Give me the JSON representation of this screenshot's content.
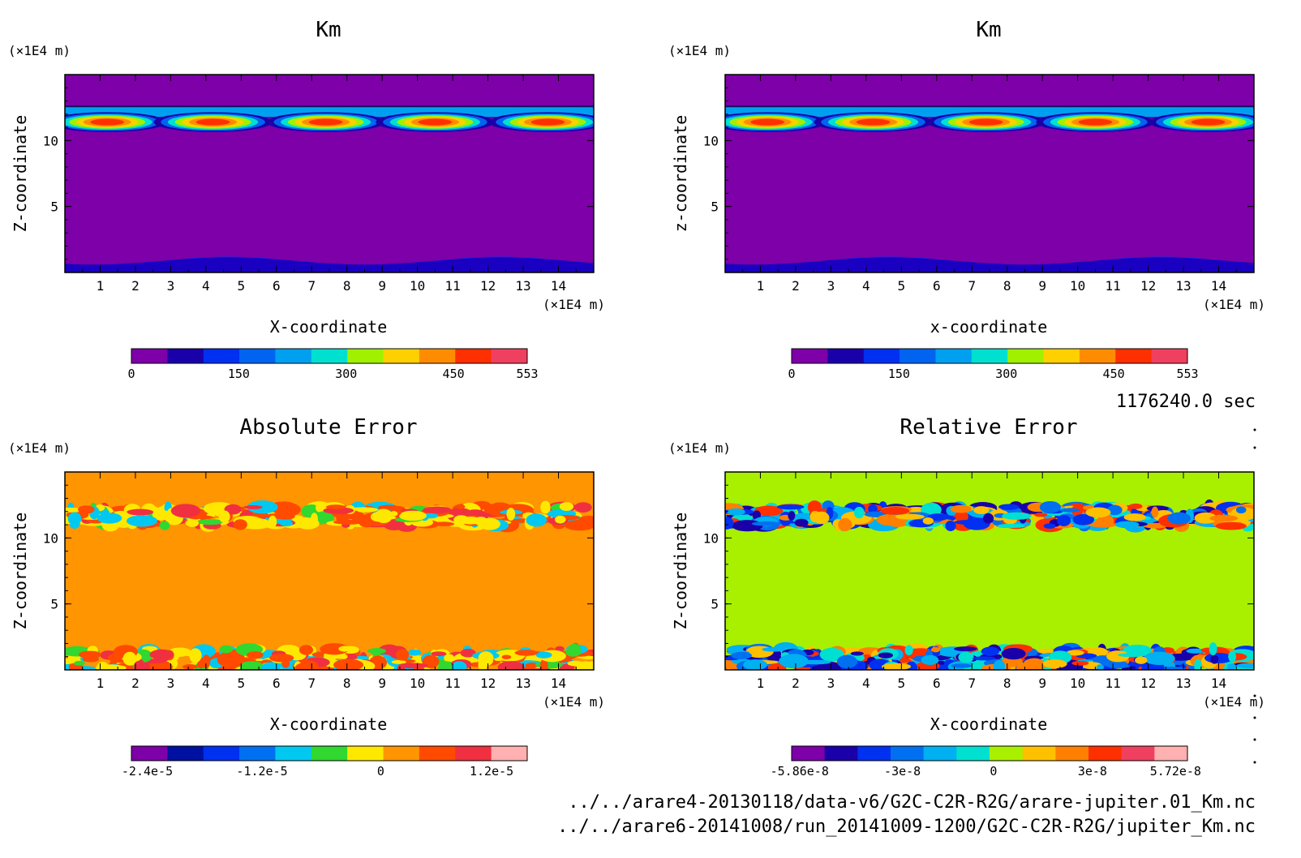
{
  "figure": {
    "time_label": "1176240.0 sec",
    "file_1": "../../arare4-20130118/data-v6/G2C-C2R-R2G/arare-jupiter.01_Km.nc",
    "file_2": "../../arare6-20141008/run_20141009-1200/G2C-C2R-R2G/jupiter_Km.nc"
  },
  "palette": {
    "bounds": [
      "#6f00a8",
      "#0010a0",
      "#0020f0",
      "#0070f0",
      "#00b0f0",
      "#00e8c8",
      "#a8f000",
      "#ffd000",
      "#ff9000",
      "#ff4000",
      "#f03050",
      "#ffb0b0"
    ]
  },
  "chart_data": [
    {
      "type": "heatmap",
      "title": "Km",
      "xlabel": "X-coordinate",
      "ylabel": "Z-coordinate",
      "x_unit": "(×1E4 m)",
      "y_unit": "(×1E4 m)",
      "xlim": [
        0,
        15
      ],
      "ylim": [
        0,
        15
      ],
      "x_ticks": [
        "1",
        "2",
        "3",
        "4",
        "5",
        "6",
        "7",
        "8",
        "9",
        "10",
        "11",
        "12",
        "13",
        "14"
      ],
      "y_ticks": [
        "5",
        "10"
      ],
      "background": "#7d00a8",
      "colorbar": {
        "ticks": [
          "0",
          "150",
          "300",
          "450",
          "553"
        ],
        "colors": [
          "#7d00a8",
          "#1a00a8",
          "#0030f0",
          "#0064f0",
          "#00a0f0",
          "#00e0d0",
          "#a0f000",
          "#ffd000",
          "#ff8c00",
          "#ff3000",
          "#f04060"
        ]
      }
    },
    {
      "type": "heatmap",
      "title": "Km",
      "xlabel": "x-coordinate",
      "ylabel": "z-coordinate",
      "x_unit": "(×1E4 m)",
      "y_unit": "(×1E4 m)",
      "xlim": [
        0,
        15
      ],
      "ylim": [
        0,
        15
      ],
      "x_ticks": [
        "1",
        "2",
        "3",
        "4",
        "5",
        "6",
        "7",
        "8",
        "9",
        "10",
        "11",
        "12",
        "13",
        "14"
      ],
      "y_ticks": [
        "5",
        "10"
      ],
      "background": "#7d00a8",
      "colorbar": {
        "ticks": [
          "0",
          "150",
          "300",
          "450",
          "553"
        ],
        "colors": [
          "#7d00a8",
          "#1a00a8",
          "#0030f0",
          "#0064f0",
          "#00a0f0",
          "#00e0d0",
          "#a0f000",
          "#ffd000",
          "#ff8c00",
          "#ff3000",
          "#f04060"
        ]
      }
    },
    {
      "type": "heatmap",
      "title": "Absolute Error",
      "xlabel": "X-coordinate",
      "ylabel": "Z-coordinate",
      "x_unit": "(×1E4 m)",
      "y_unit": "(×1E4 m)",
      "xlim": [
        0,
        15
      ],
      "ylim": [
        0,
        15
      ],
      "x_ticks": [
        "1",
        "2",
        "3",
        "4",
        "5",
        "6",
        "7",
        "8",
        "9",
        "10",
        "11",
        "12",
        "13",
        "14"
      ],
      "y_ticks": [
        "5",
        "10"
      ],
      "background": "#ff9500",
      "colorbar": {
        "ticks": [
          "-2.4e-5",
          "-1.2e-5",
          "0",
          "1.2e-5"
        ],
        "colors": [
          "#7d00a8",
          "#0010a0",
          "#0030f0",
          "#0070f0",
          "#00c8f0",
          "#30d830",
          "#ffe800",
          "#ff9500",
          "#ff4a00",
          "#f03040",
          "#ffb0b0"
        ]
      }
    },
    {
      "type": "heatmap",
      "title": "Relative Error",
      "xlabel": "X-coordinate",
      "ylabel": "Z-coordinate",
      "x_unit": "(×1E4 m)",
      "y_unit": "(×1E4 m)",
      "xlim": [
        0,
        15
      ],
      "ylim": [
        0,
        15
      ],
      "x_ticks": [
        "1",
        "2",
        "3",
        "4",
        "5",
        "6",
        "7",
        "8",
        "9",
        "10",
        "11",
        "12",
        "13",
        "14"
      ],
      "y_ticks": [
        "5",
        "10"
      ],
      "background": "#a8f000",
      "colorbar": {
        "ticks": [
          "-5.86e-8",
          "-3e-8",
          "0",
          "3e-8",
          "5.72e-8"
        ],
        "colors": [
          "#7d00a8",
          "#1a00a8",
          "#0030f0",
          "#0070f0",
          "#00b0f0",
          "#00e0d0",
          "#a8f000",
          "#ffc000",
          "#ff8000",
          "#ff3000",
          "#f04060",
          "#ffb0b0"
        ]
      }
    }
  ]
}
